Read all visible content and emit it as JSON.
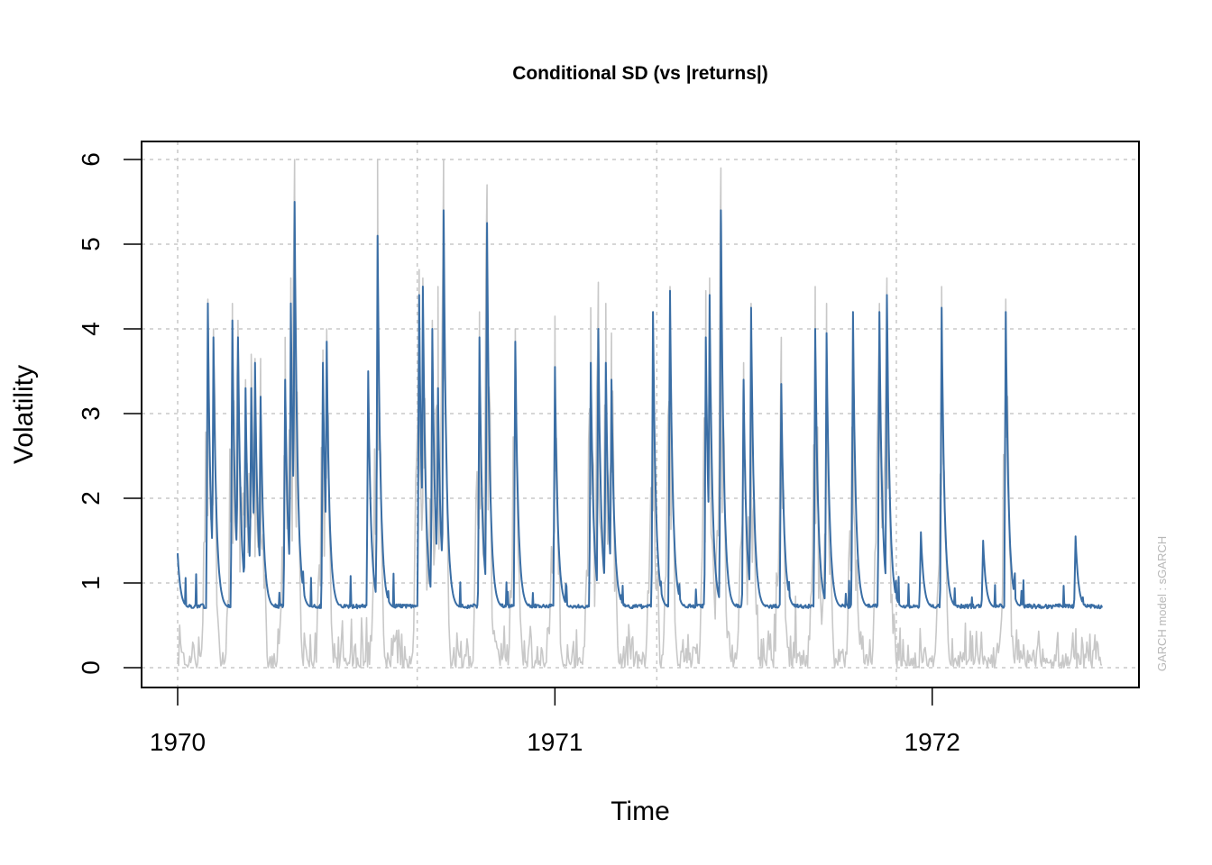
{
  "chart_data": {
    "type": "line",
    "title": "Conditional SD (vs |returns|)",
    "xlabel": "Time",
    "ylabel": "Volatility",
    "side_note": "GARCH model :  sGARCH",
    "xlim": [
      1970.0,
      1972.45
    ],
    "ylim": [
      0,
      6
    ],
    "x_ticks": [
      1970,
      1971,
      1972
    ],
    "x_tick_labels": [
      "1970",
      "1971",
      "1972"
    ],
    "y_ticks": [
      0,
      1,
      2,
      3,
      4,
      5,
      6
    ],
    "y_tick_labels": [
      "0",
      "1",
      "2",
      "3",
      "4",
      "5",
      "6"
    ],
    "grid": true,
    "grid_x": [
      1970.0,
      1970.635,
      1971.27,
      1971.905
    ],
    "colors": {
      "sigma": "#3a6ea5",
      "abs_returns": "#c8c8c8",
      "grid": "#c8c8c8"
    },
    "series": [
      {
        "key": "abs_returns",
        "color": "#c8c8c8",
        "baseline": 0.2,
        "spikes": [
          [
            1970.08,
            4.35
          ],
          [
            1970.095,
            4.0
          ],
          [
            1970.145,
            4.3
          ],
          [
            1970.16,
            4.1
          ],
          [
            1970.18,
            3.4
          ],
          [
            1970.195,
            3.7
          ],
          [
            1970.205,
            3.65
          ],
          [
            1970.22,
            3.65
          ],
          [
            1970.285,
            3.9
          ],
          [
            1970.3,
            4.6
          ],
          [
            1970.31,
            6.0
          ],
          [
            1970.385,
            3.75
          ],
          [
            1970.395,
            4.0
          ],
          [
            1970.53,
            6.0
          ],
          [
            1970.64,
            4.7
          ],
          [
            1970.65,
            4.6
          ],
          [
            1970.675,
            4.1
          ],
          [
            1970.69,
            4.5
          ],
          [
            1970.705,
            6.0
          ],
          [
            1970.8,
            4.2
          ],
          [
            1970.82,
            5.7
          ],
          [
            1970.895,
            4.0
          ],
          [
            1971.0,
            4.15
          ],
          [
            1971.095,
            4.25
          ],
          [
            1971.115,
            4.55
          ],
          [
            1971.135,
            4.3
          ],
          [
            1971.15,
            3.95
          ],
          [
            1971.26,
            4.2
          ],
          [
            1971.305,
            4.5
          ],
          [
            1971.4,
            4.45
          ],
          [
            1971.41,
            4.6
          ],
          [
            1971.44,
            5.9
          ],
          [
            1971.5,
            3.6
          ],
          [
            1971.52,
            4.3
          ],
          [
            1971.6,
            3.9
          ],
          [
            1971.69,
            4.5
          ],
          [
            1971.72,
            4.3
          ],
          [
            1971.79,
            3.7
          ],
          [
            1971.86,
            4.3
          ],
          [
            1971.88,
            4.6
          ],
          [
            1972.025,
            4.5
          ],
          [
            1972.195,
            4.35
          ]
        ]
      },
      {
        "key": "sigma",
        "color": "#3a6ea5",
        "baseline": 0.7,
        "spikes": [
          [
            1970.0,
            1.35
          ],
          [
            1970.08,
            4.3
          ],
          [
            1970.095,
            3.9
          ],
          [
            1970.145,
            4.1
          ],
          [
            1970.16,
            3.9
          ],
          [
            1970.18,
            3.3
          ],
          [
            1970.195,
            3.3
          ],
          [
            1970.205,
            3.6
          ],
          [
            1970.22,
            3.2
          ],
          [
            1970.285,
            3.4
          ],
          [
            1970.3,
            4.3
          ],
          [
            1970.31,
            5.5
          ],
          [
            1970.385,
            3.6
          ],
          [
            1970.395,
            3.85
          ],
          [
            1970.505,
            3.5
          ],
          [
            1970.53,
            5.1
          ],
          [
            1970.64,
            4.4
          ],
          [
            1970.65,
            4.5
          ],
          [
            1970.675,
            4.0
          ],
          [
            1970.69,
            3.3
          ],
          [
            1970.705,
            5.4
          ],
          [
            1970.8,
            3.9
          ],
          [
            1970.82,
            5.25
          ],
          [
            1970.895,
            3.85
          ],
          [
            1971.0,
            3.55
          ],
          [
            1971.095,
            3.6
          ],
          [
            1971.115,
            4.0
          ],
          [
            1971.135,
            3.6
          ],
          [
            1971.15,
            3.4
          ],
          [
            1971.26,
            4.2
          ],
          [
            1971.305,
            4.45
          ],
          [
            1971.4,
            3.9
          ],
          [
            1971.41,
            4.4
          ],
          [
            1971.44,
            5.4
          ],
          [
            1971.5,
            3.4
          ],
          [
            1971.52,
            4.25
          ],
          [
            1971.6,
            3.35
          ],
          [
            1971.69,
            4.0
          ],
          [
            1971.72,
            3.95
          ],
          [
            1971.79,
            4.2
          ],
          [
            1971.86,
            4.2
          ],
          [
            1971.88,
            4.4
          ],
          [
            1971.97,
            1.6
          ],
          [
            1972.025,
            4.25
          ],
          [
            1972.135,
            1.5
          ],
          [
            1972.195,
            4.2
          ],
          [
            1972.38,
            1.55
          ]
        ]
      }
    ]
  }
}
